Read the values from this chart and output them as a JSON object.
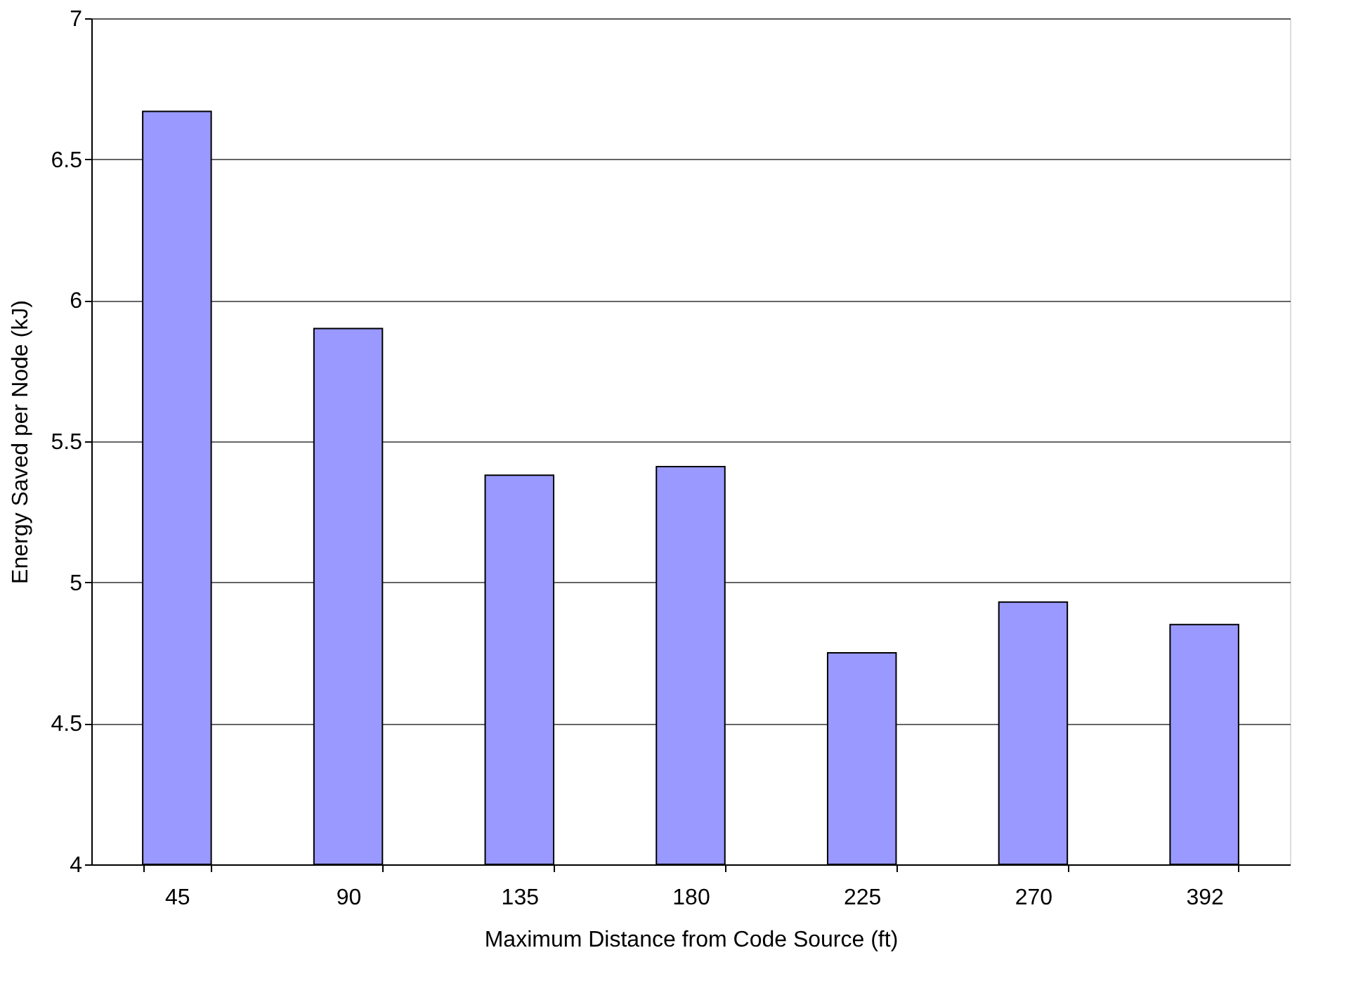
{
  "chart_data": {
    "type": "bar",
    "xlabel": "Maximum Distance from Code Source (ft)",
    "ylabel": "Energy Saved per Node (kJ)",
    "categories": [
      "45",
      "90",
      "135",
      "180",
      "225",
      "270",
      "392"
    ],
    "values": [
      6.67,
      5.9,
      5.38,
      5.41,
      4.75,
      4.93,
      4.85
    ],
    "color": "#9999ff",
    "ylim": [
      4,
      7
    ],
    "yticks": [
      4,
      4.5,
      5,
      5.5,
      6,
      6.5,
      7
    ],
    "grid": "y"
  }
}
